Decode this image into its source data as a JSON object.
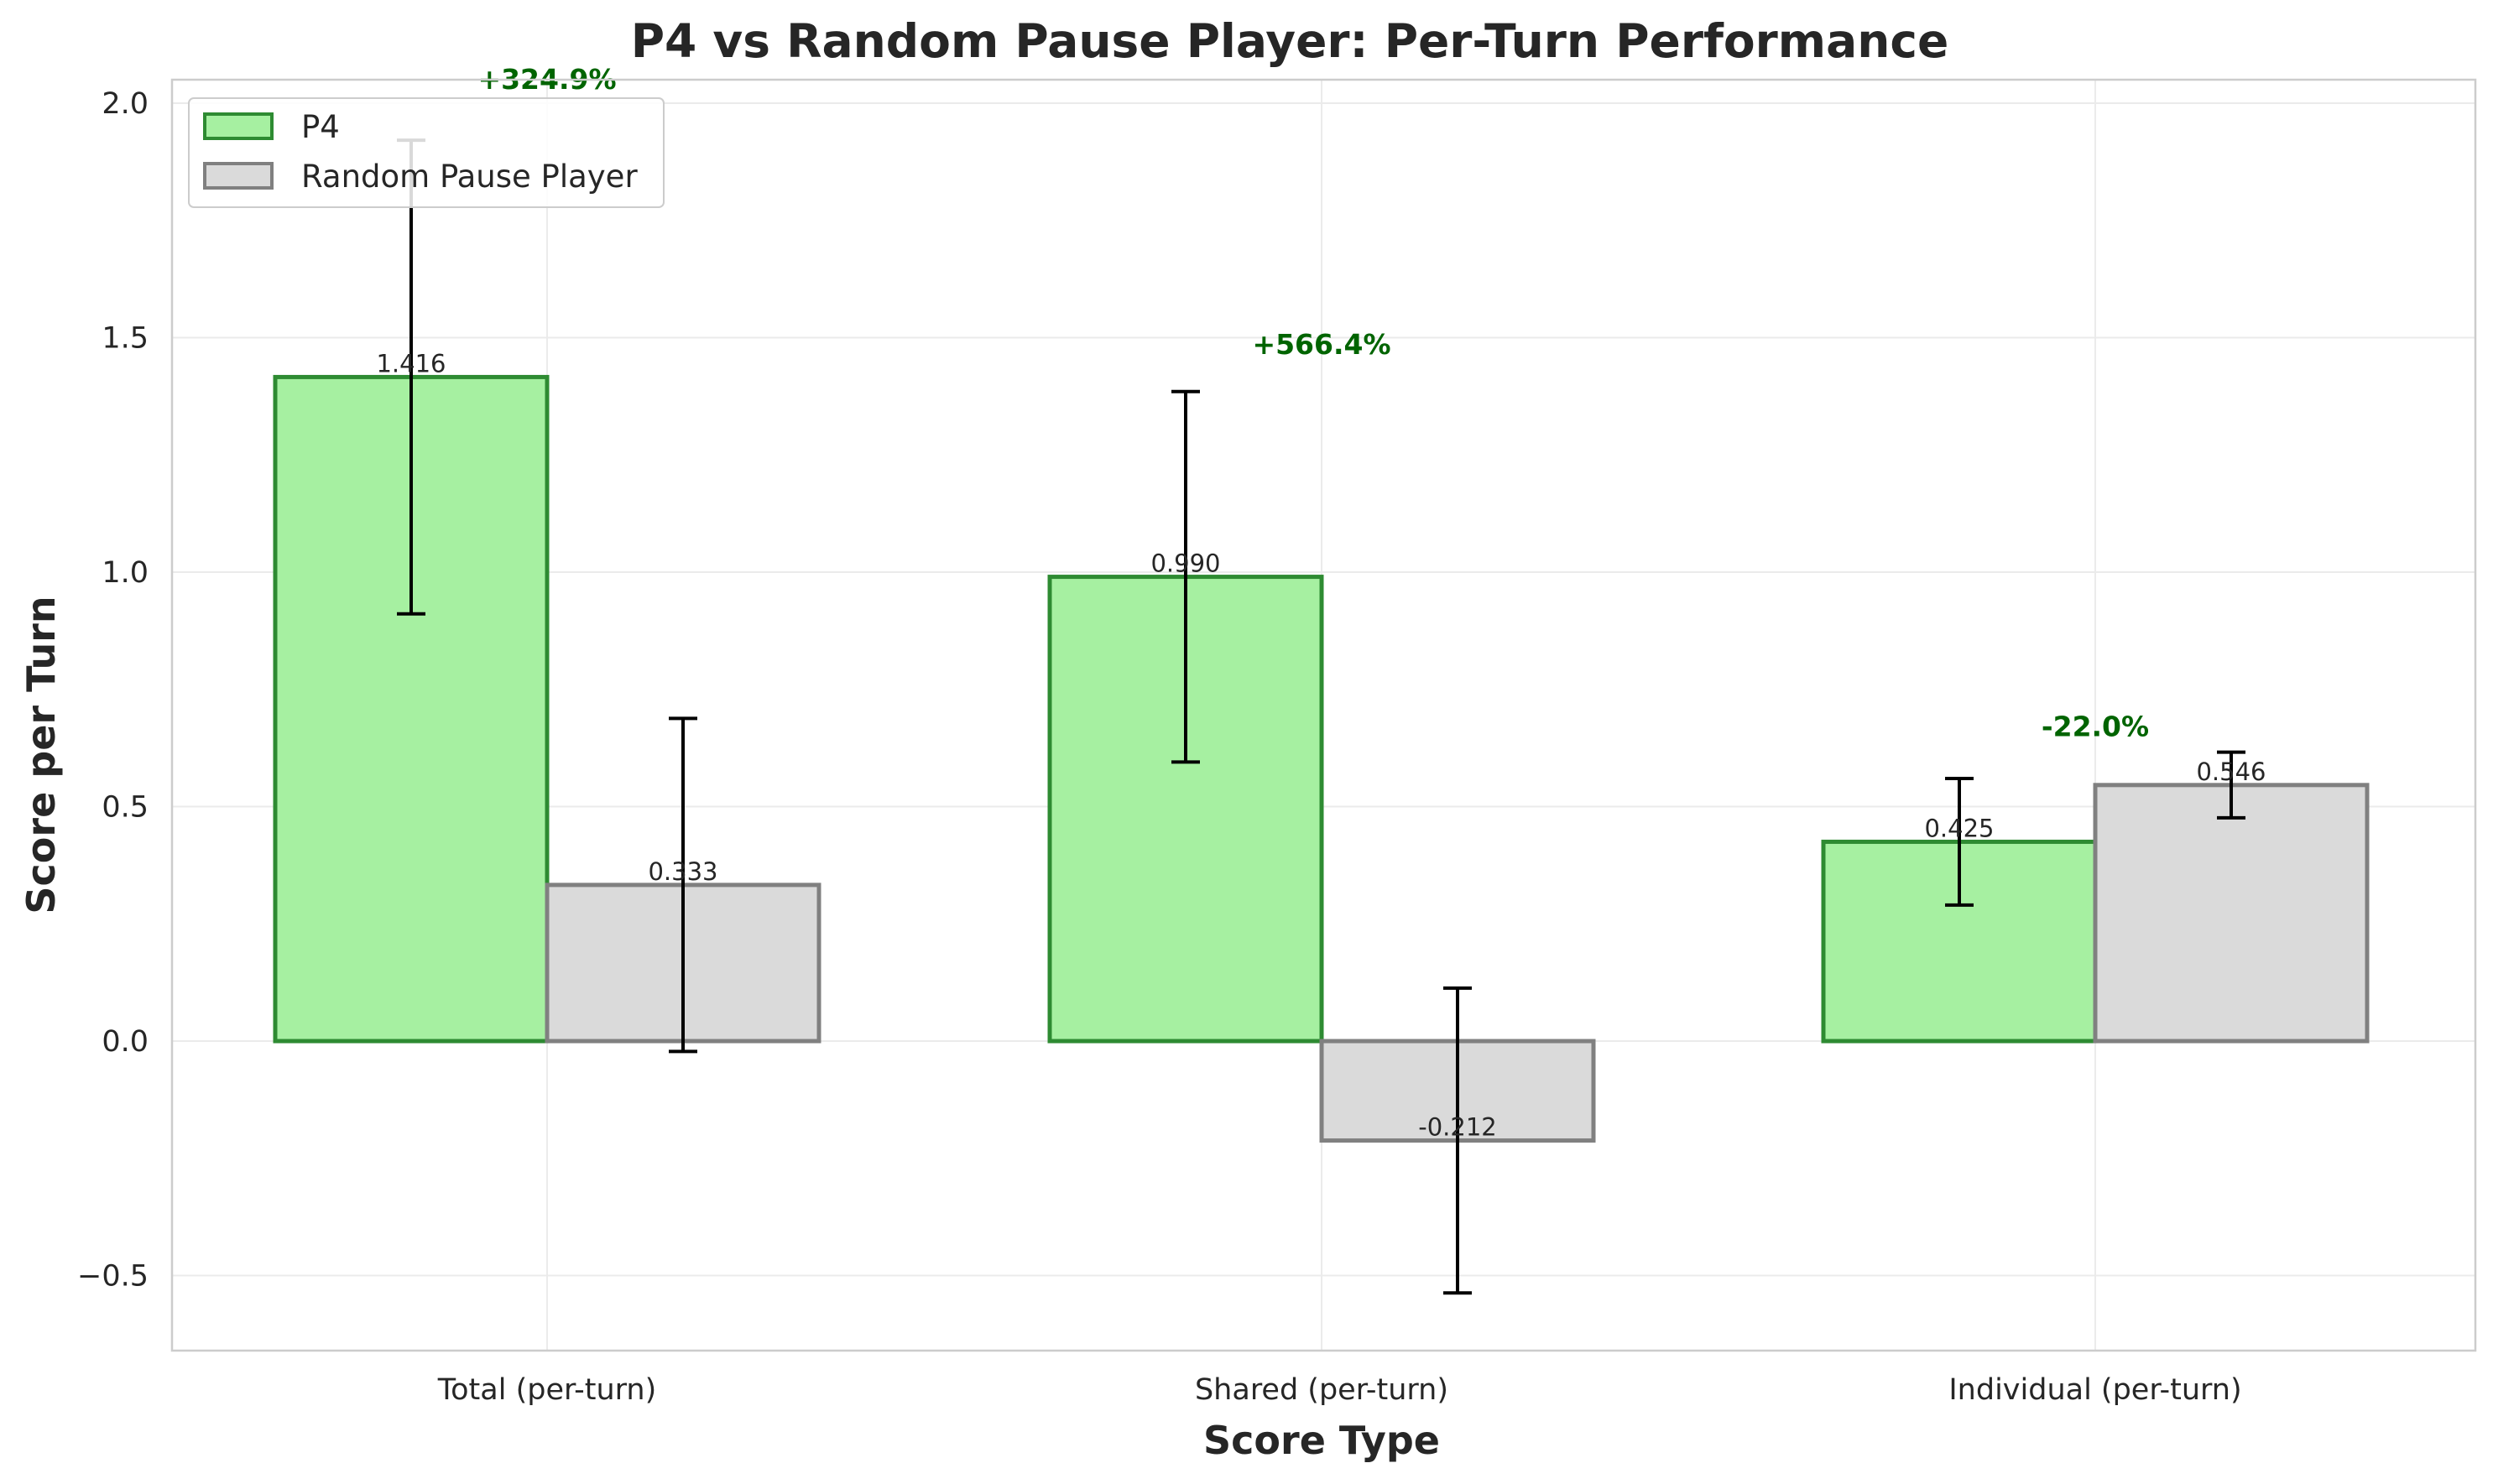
{
  "chart_data": {
    "type": "bar",
    "title": "P4 vs Random Pause Player: Per-Turn Performance",
    "xlabel": "Score Type",
    "ylabel": "Score per Turn",
    "categories": [
      "Total (per-turn)",
      "Shared (per-turn)",
      "Individual (per-turn)"
    ],
    "series": [
      {
        "name": "P4",
        "values": [
          1.416,
          0.99,
          0.425
        ],
        "error": [
          0.505,
          0.395,
          0.135
        ],
        "value_labels": [
          "1.416",
          "0.990",
          "0.425"
        ],
        "fill": "#a6f0a1",
        "edge": "#2e8b32"
      },
      {
        "name": "Random Pause Player",
        "values": [
          0.333,
          -0.212,
          0.546
        ],
        "error": [
          0.355,
          0.325,
          0.07
        ],
        "value_labels": [
          "0.333",
          "-0.212",
          "0.546"
        ],
        "fill": "#dadada",
        "edge": "#808080"
      }
    ],
    "annotations": [
      {
        "category": "Total (per-turn)",
        "text": "+324.9%",
        "y": 2.03
      },
      {
        "category": "Shared (per-turn)",
        "text": "+566.4%",
        "y": 1.465
      },
      {
        "category": "Individual (per-turn)",
        "text": "-22.0%",
        "y": 0.65
      }
    ],
    "annotation_color": "#006400",
    "ylim": [
      -0.66,
      2.05
    ],
    "yticks": [
      -0.5,
      0.0,
      0.5,
      1.0,
      1.5,
      2.0
    ],
    "ytick_labels": [
      "−0.5",
      "0.0",
      "0.5",
      "1.0",
      "1.5",
      "2.0"
    ],
    "grid": true,
    "legend_position": "top-left"
  }
}
